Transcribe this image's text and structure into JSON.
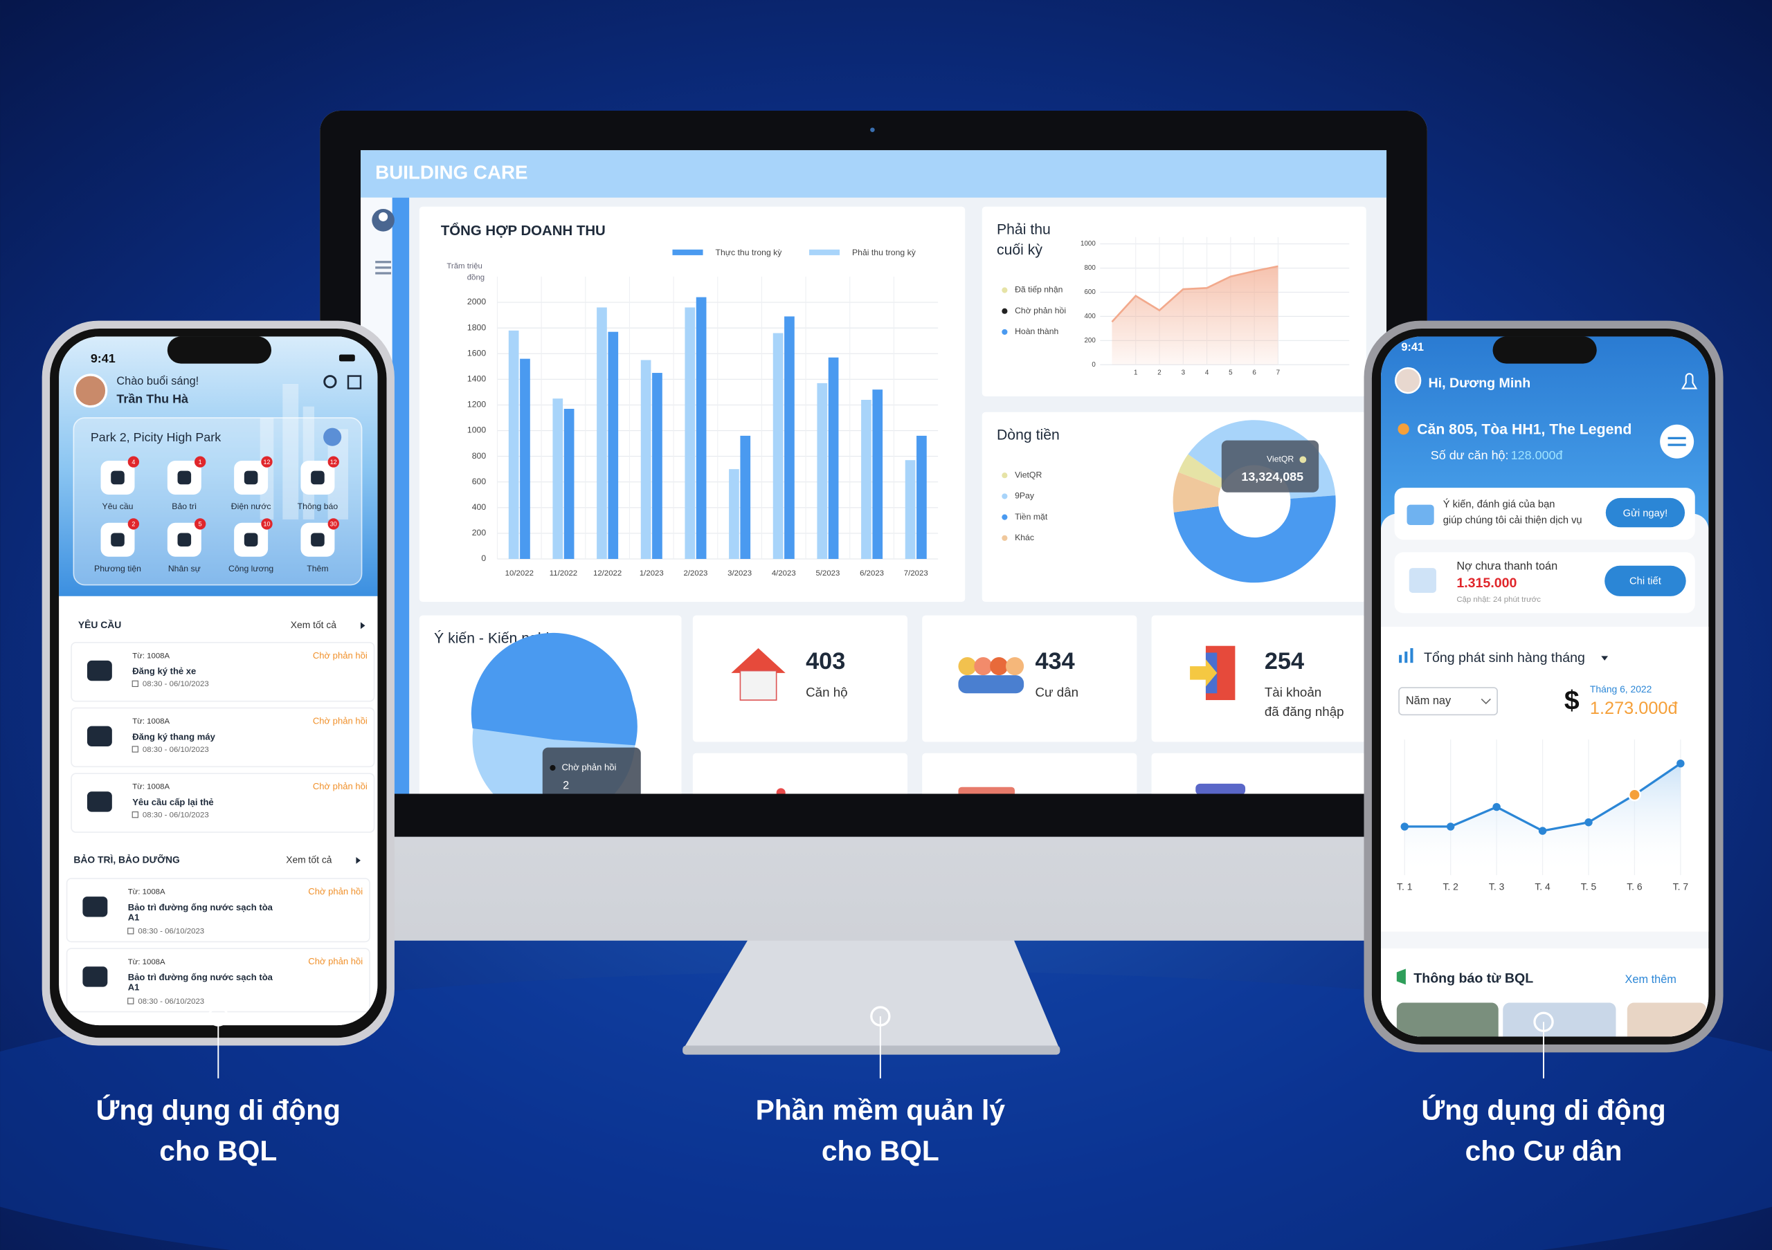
{
  "desktop": {
    "brand": "BUILDING CARE",
    "revenue_chart": {
      "type": "bar",
      "title": "TỔNG HỢP DOANH THU",
      "y_label": [
        "Trăm triệu",
        "đồng"
      ],
      "categories": [
        "10/2022",
        "11/2022",
        "12/2022",
        "1/2023",
        "2/2023",
        "3/2023",
        "4/2023",
        "5/2023",
        "6/2023",
        "7/2023"
      ],
      "series": [
        {
          "name": "Thực thu trong kỳ",
          "color": "#4a9af0",
          "values": [
            1560,
            1170,
            1770,
            1450,
            2040,
            960,
            1890,
            1570,
            1320,
            960
          ]
        },
        {
          "name": "Phải thu trong kỳ",
          "color": "#a8d4fa",
          "values": [
            1780,
            1250,
            1960,
            1550,
            1960,
            700,
            1760,
            1370,
            1240,
            770
          ]
        }
      ],
      "ylim": [
        0,
        2200
      ],
      "yticks": [
        0,
        200,
        400,
        600,
        800,
        1000,
        1200,
        1400,
        1600,
        1800,
        2000
      ],
      "grid": true
    },
    "receivable_chart": {
      "type": "area",
      "title": [
        "Phải thu",
        "cuối kỳ"
      ],
      "legend": [
        {
          "name": "Đã tiếp nhận",
          "color": "#e6e3a6"
        },
        {
          "name": "Chờ phản hồi",
          "color": "#222222"
        },
        {
          "name": "Hoàn thành",
          "color": "#4a9af0"
        }
      ],
      "x": [
        0,
        1,
        2,
        3,
        4,
        5,
        6,
        7
      ],
      "values": [
        355,
        570,
        450,
        625,
        635,
        730,
        775,
        815
      ],
      "color": "#f2a98c",
      "xlim": [
        -0.5,
        10
      ],
      "ylim": [
        0,
        1000
      ],
      "xticks": [
        1,
        2,
        3,
        4,
        5,
        6,
        7
      ],
      "yticks": [
        0,
        200,
        400,
        600,
        800,
        1000
      ],
      "grid": true
    },
    "cashflow_chart": {
      "type": "donut",
      "title": "Dòng tiền",
      "categories": [
        "VietQR",
        "9Pay",
        "Tiền mặt",
        "Khác"
      ],
      "colors": [
        "#e6e3a6",
        "#a8d4fa",
        "#4a9af0",
        "#f0c89c"
      ],
      "values": [
        4,
        39,
        49,
        8
      ],
      "tooltip": {
        "label": "VietQR",
        "value": "13,324,085"
      }
    },
    "feedback_chart": {
      "type": "pie",
      "title": "Ý kiến - Kiến nghị",
      "tooltip": {
        "label": "Chờ phản hồi",
        "value": 2
      }
    },
    "stats": [
      {
        "value": 403,
        "label": [
          "Căn hộ"
        ]
      },
      {
        "value": 434,
        "label": [
          "Cư dân"
        ]
      },
      {
        "value": 254,
        "label": [
          "Tài khoản",
          "đã đăng nhập"
        ]
      }
    ]
  },
  "bql_app": {
    "time": "9:41",
    "greeting": "Chào buổi sáng!",
    "name": "Trần Thu Hà",
    "project": "Park 2, Picity High Park",
    "menu": [
      {
        "label": "Yêu cầu",
        "badge": 4
      },
      {
        "label": "Bảo trì",
        "badge": 1
      },
      {
        "label": "Điện nước",
        "badge": 12
      },
      {
        "label": "Thông báo",
        "badge": 12
      },
      {
        "label": "Phương tiện",
        "badge": 2
      },
      {
        "label": "Nhân sự",
        "badge": 5
      },
      {
        "label": "Công lương",
        "badge": 10
      },
      {
        "label": "Thêm",
        "badge": 30
      }
    ],
    "requests": {
      "title": "YÊU CẦU",
      "see_all": "Xem tốt cả",
      "items": [
        {
          "from": "Từ: 1008A",
          "title": [
            "Đăng ký thẻ xe"
          ],
          "time": "08:30 - 06/10/2023",
          "status": "Chờ phản hồi"
        },
        {
          "from": "Từ: 1008A",
          "title": [
            "Đăng ký thang máy"
          ],
          "time": "08:30 - 06/10/2023",
          "status": "Chờ phản hồi"
        },
        {
          "from": "Từ: 1008A",
          "title": [
            "Yêu cầu cấp lại thẻ"
          ],
          "time": "08:30 - 06/10/2023",
          "status": "Chờ phản hồi"
        }
      ]
    },
    "maintenance": {
      "title": "BẢO TRÌ, BẢO DƯỠNG",
      "see_all": "Xem tốt cả",
      "items": [
        {
          "from": "Từ: 1008A",
          "title": [
            "Bảo trì đường ống nước sạch tòa",
            "A1"
          ],
          "time": "08:30 - 06/10/2023",
          "status": "Chờ phản hồi"
        },
        {
          "from": "Từ: 1008A",
          "title": [
            "Bảo trì đường ống nước sạch tòa",
            "A1"
          ],
          "time": "08:30 - 06/10/2023",
          "status": "Chờ phản hồi"
        }
      ]
    }
  },
  "resident_app": {
    "time": "9:41",
    "greeting": "Hi, Dương Minh",
    "apartment": "Căn 805, Tòa HH1, The Legend",
    "balance_label": "Số dư căn hộ:",
    "balance": "128.000đ",
    "feedback_prompt": [
      "Ý kiến, đánh giá của bạn",
      "giúp chúng tôi cải thiện dịch vụ"
    ],
    "feedback_button": "Gửi ngay!",
    "debt_label": "Nợ chưa thanh toán",
    "debt": "1.315.000",
    "updated": "Cập nhật: 24 phút trước",
    "detail_button": "Chi tiết",
    "monthly_chart": {
      "type": "line",
      "title": "Tổng phát sinh hàng tháng",
      "period": "Năm nay",
      "currency_icon": "$",
      "highlight_label": "Tháng 6, 2022",
      "categories": [
        "T. 1",
        "T. 2",
        "T. 3",
        "T. 4",
        "T. 5",
        "T. 6",
        "T. 7"
      ],
      "values": [
        900000,
        900000,
        1130000,
        850000,
        950000,
        1273000,
        1640000
      ],
      "value_labels": [
        null,
        null,
        null,
        null,
        null,
        "1.273.000đ",
        null
      ],
      "color": "#2b86d6",
      "highlight_color": "#f5a03a",
      "ylim": [
        0,
        1920000
      ]
    },
    "notices_title": "Thông báo từ BQL",
    "see_more": "Xem thêm"
  },
  "captions": [
    [
      "Ứng dụng di động",
      "cho BQL"
    ],
    [
      "Phần mềm quản lý",
      "cho BQL"
    ],
    [
      "Ứng dụng di động",
      "cho Cư dân"
    ]
  ]
}
